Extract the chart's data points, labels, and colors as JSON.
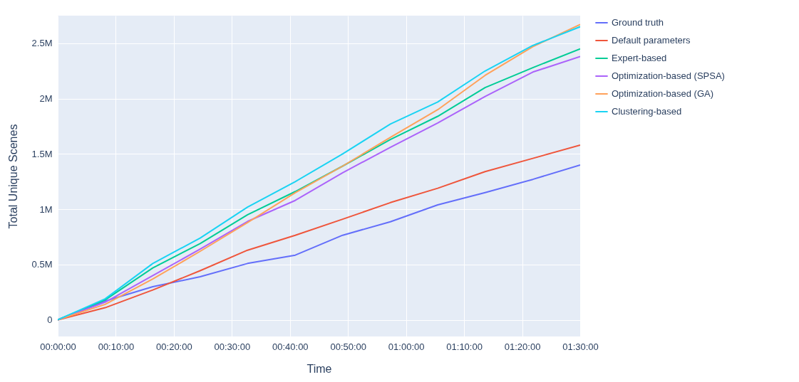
{
  "chart_data": {
    "type": "line",
    "xlabel": "Time",
    "ylabel": "Total Unique Scenes",
    "x": [
      0,
      0.136,
      0.273,
      0.409,
      0.545,
      0.682,
      0.818,
      0.955,
      1.091,
      1.227,
      1.364,
      1.5
    ],
    "series": [
      {
        "name": "Ground truth",
        "color": "#636efa",
        "values": [
          0,
          170000,
          300000,
          390000,
          510000,
          585000,
          765000,
          887000,
          1040000,
          1150000,
          1270000,
          1400000
        ]
      },
      {
        "name": "Default parameters",
        "color": "#ef553b",
        "values": [
          0,
          110000,
          270000,
          445000,
          630000,
          765000,
          910000,
          1060000,
          1190000,
          1340000,
          1460000,
          1580000
        ]
      },
      {
        "name": "Expert-based",
        "color": "#00cc96",
        "values": [
          0,
          180000,
          470000,
          690000,
          950000,
          1160000,
          1390000,
          1630000,
          1840000,
          2100000,
          2280000,
          2450000
        ]
      },
      {
        "name": "Optimization-based (SPSA)",
        "color": "#ab63fa",
        "values": [
          0,
          160000,
          400000,
          640000,
          890000,
          1080000,
          1330000,
          1560000,
          1780000,
          2020000,
          2240000,
          2380000
        ]
      },
      {
        "name": "Optimization-based (GA)",
        "color": "#ffa15a",
        "values": [
          0,
          140000,
          370000,
          620000,
          880000,
          1150000,
          1390000,
          1650000,
          1900000,
          2210000,
          2470000,
          2670000
        ]
      },
      {
        "name": "Clustering-based",
        "color": "#19d3f3",
        "values": [
          0,
          190000,
          510000,
          740000,
          1020000,
          1250000,
          1500000,
          1770000,
          1970000,
          2250000,
          2480000,
          2650000
        ]
      }
    ],
    "xlim": [
      0,
      1.5
    ],
    "xticks": [
      {
        "value": 0,
        "label": "00:00:00"
      },
      {
        "value": 0.16667,
        "label": "00:10:00"
      },
      {
        "value": 0.33333,
        "label": "00:20:00"
      },
      {
        "value": 0.5,
        "label": "00:30:00"
      },
      {
        "value": 0.66667,
        "label": "00:40:00"
      },
      {
        "value": 0.83333,
        "label": "00:50:00"
      },
      {
        "value": 1,
        "label": "01:00:00"
      },
      {
        "value": 1.16667,
        "label": "01:10:00"
      },
      {
        "value": 1.33333,
        "label": "01:20:00"
      },
      {
        "value": 1.5,
        "label": "01:30:00"
      }
    ],
    "ylim": [
      -150000,
      2750000
    ],
    "yticks": [
      0,
      {
        "value": 500000,
        "label": "0.5M"
      },
      {
        "value": 1000000,
        "label": "1M"
      },
      {
        "value": 1500000,
        "label": "1.5M"
      },
      {
        "value": 2000000,
        "label": "2M"
      },
      {
        "value": 2500000,
        "label": "2.5M"
      }
    ],
    "grid": true,
    "legend": "top right",
    "marker": "none",
    "line_style": "solid"
  }
}
